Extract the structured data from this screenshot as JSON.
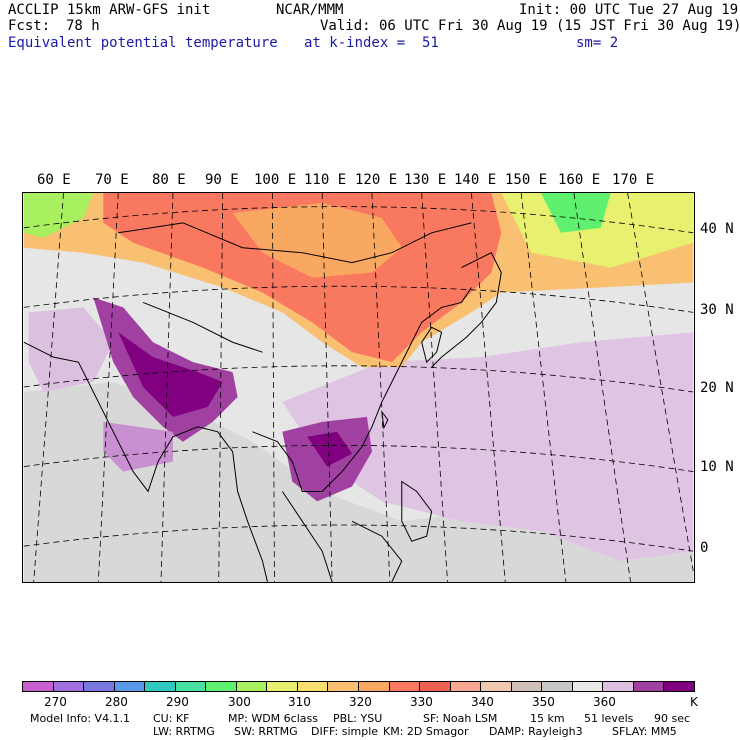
{
  "header": {
    "model": "ACCLIP 15km ARW-GFS init",
    "org": "NCAR/MMM",
    "init": "Init: 00 UTC Tue 27 Aug 19",
    "fcst_label": "Fcst:",
    "fcst_value": "78 h",
    "valid": "Valid: 06 UTC Fri 30 Aug 19 (15 JST Fri 30 Aug 19)",
    "field": "Equivalent potential temperature",
    "level": "at k-index =  51",
    "smoothing": "sm= 2"
  },
  "map": {
    "lon_labels": [
      "60 E",
      "70 E",
      "80 E",
      "90 E",
      "100 E",
      "110 E",
      "120 E",
      "130 E",
      "140 E",
      "150 E",
      "160 E",
      "170 E"
    ],
    "lat_labels": [
      "40 N",
      "30 N",
      "20 N",
      "10 N",
      "0"
    ]
  },
  "colorbar": {
    "colors": [
      "#c860d0",
      "#a070e0",
      "#7878e0",
      "#5a98e8",
      "#30c8c0",
      "#48e0a0",
      "#60f070",
      "#a8f060",
      "#e8f070",
      "#f8e070",
      "#f8c070",
      "#f8a860",
      "#f87860",
      "#f06050",
      "#f8a890",
      "#f0c8b0",
      "#d0c0b8",
      "#c8c8c8",
      "#e8e8e8",
      "#e0c0e0",
      "#a040a0",
      "#800080"
    ],
    "tick_labels": [
      "270",
      "280",
      "290",
      "300",
      "310",
      "320",
      "330",
      "340",
      "350",
      "360"
    ],
    "unit": "K"
  },
  "footer": {
    "line1": [
      "Model Info: V4.1.1",
      "CU: KF",
      "MP: WDM 6class",
      "PBL: YSU",
      "SF: Noah LSM",
      "15 km",
      "51 levels",
      "90 sec"
    ],
    "line2": [
      "LW: RRTMG",
      "SW: RRTMG",
      "DIFF: simple",
      "KM: 2D Smagor",
      "DAMP: Rayleigh3",
      "SFLAY: MM5"
    ]
  }
}
